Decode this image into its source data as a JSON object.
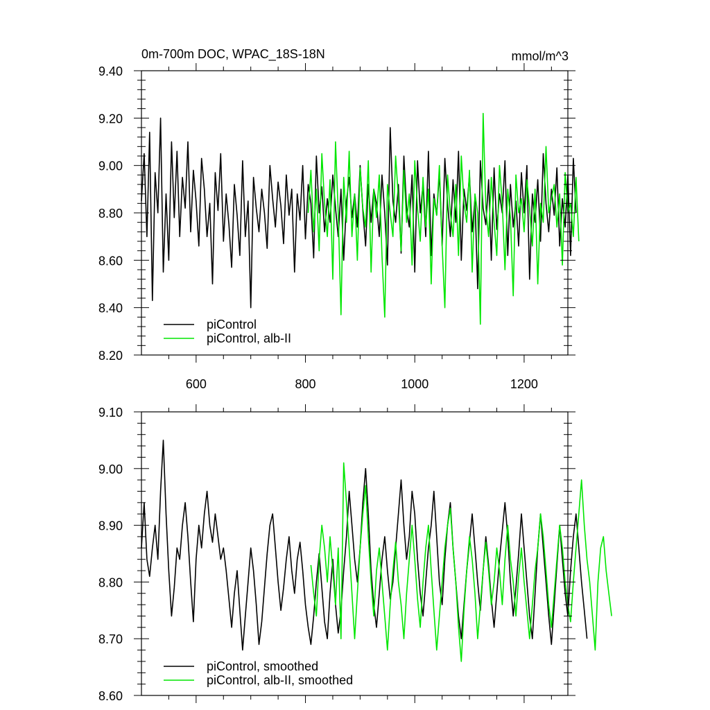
{
  "chart_data": [
    {
      "type": "line",
      "title": "0m-700m DOC, WPAC_18S-18N",
      "units": "mmol/m^3",
      "xlim": [
        500,
        1280
      ],
      "ylim": [
        8.2,
        9.4
      ],
      "xticks": [
        600,
        800,
        1000,
        1200
      ],
      "xtick_labels": [
        "600",
        "800",
        "1000",
        "1200"
      ],
      "yticks": [
        8.2,
        8.4,
        8.6,
        8.8,
        9.0,
        9.2,
        9.4
      ],
      "ytick_labels": [
        "8.20",
        "8.40",
        "8.60",
        "8.80",
        "9.00",
        "9.20",
        "9.40"
      ],
      "grid": false,
      "legend_position": "bottom-left",
      "series": [
        {
          "name": "piControl",
          "color": "#000000",
          "x_start": 500,
          "x_step": 5,
          "values": [
            8.85,
            9.05,
            8.7,
            9.14,
            8.43,
            8.97,
            8.8,
            9.2,
            8.55,
            8.88,
            8.6,
            9.1,
            8.78,
            9.06,
            8.7,
            8.95,
            8.82,
            9.1,
            8.72,
            8.98,
            8.85,
            8.66,
            9.03,
            8.9,
            8.7,
            8.84,
            8.5,
            8.97,
            8.81,
            9.05,
            8.68,
            8.88,
            8.75,
            8.57,
            8.92,
            8.79,
            8.62,
            9.02,
            8.7,
            8.85,
            8.4,
            8.95,
            8.82,
            8.72,
            8.9,
            8.8,
            8.65,
            9.0,
            8.86,
            8.74,
            8.93,
            8.83,
            8.67,
            8.96,
            8.79,
            8.9,
            8.55,
            8.88,
            8.77,
            9.0,
            8.69,
            8.92,
            8.84,
            8.61,
            9.04,
            8.8,
            8.91,
            8.72,
            8.86,
            8.76,
            8.96,
            8.82,
            8.7,
            8.9,
            8.6,
            8.85,
            8.95,
            8.78,
            8.88,
            8.74,
            9.0,
            8.81,
            8.66,
            8.92,
            8.76,
            8.9,
            8.84,
            8.7,
            8.96,
            8.8,
            8.58,
            9.16,
            8.85,
            8.76,
            8.92,
            8.63,
            9.04,
            8.82,
            8.74,
            8.96,
            8.55,
            9.02,
            8.8,
            8.92,
            8.7,
            9.06,
            8.62,
            8.88,
            8.79,
            8.97,
            8.66,
            9.03,
            8.84,
            8.7,
            8.94,
            8.76,
            9.06,
            8.6,
            8.9,
            8.81,
            8.96,
            8.72,
            8.86,
            8.48,
            9.02,
            8.82,
            8.75,
            8.94,
            8.6,
            8.99,
            8.73,
            8.88,
            8.8,
            9.02,
            8.62,
            8.92,
            8.74,
            8.85,
            8.66,
            8.97,
            8.8,
            9.0,
            8.52,
            8.88,
            8.76,
            8.94,
            8.68,
            9.05,
            8.84,
            8.72,
            8.9,
            8.79,
            8.99,
            8.66,
            8.86,
            8.74,
            8.96,
            8.62,
            9.03,
            8.8
          ]
        },
        {
          "name": "piControl, alb-II",
          "color": "#00e600",
          "x_start": 805,
          "x_step": 5,
          "values": [
            8.8,
            8.98,
            8.72,
            8.9,
            8.64,
            9.05,
            8.84,
            8.7,
            8.94,
            8.52,
            9.1,
            8.8,
            8.37,
            8.95,
            8.76,
            9.06,
            8.7,
            8.88,
            8.6,
            8.99,
            8.82,
            8.74,
            9.02,
            8.55,
            8.9,
            8.78,
            8.96,
            8.62,
            8.36,
            8.92,
            8.8,
            8.7,
            9.04,
            8.86,
            8.64,
            8.98,
            8.76,
            8.88,
            8.58,
            9.02,
            8.82,
            8.68,
            8.95,
            8.74,
            8.9,
            8.5,
            8.86,
            8.79,
            9.0,
            8.66,
            8.4,
            8.96,
            8.8,
            8.7,
            8.92,
            8.62,
            9.04,
            8.84,
            8.76,
            8.98,
            8.55,
            8.88,
            8.8,
            8.33,
            9.22,
            8.82,
            8.7,
            8.95,
            8.76,
            8.62,
            9.0,
            8.84,
            8.56,
            8.9,
            8.78,
            8.45,
            8.96,
            8.8,
            8.86,
            8.72,
            8.94,
            8.82,
            8.66,
            8.9,
            8.5,
            8.84,
            8.76,
            9.08,
            8.8,
            8.86,
            8.92,
            8.74,
            8.88,
            8.58,
            8.97,
            8.8,
            8.84,
            8.7,
            8.95,
            8.68
          ]
        }
      ]
    },
    {
      "type": "line",
      "title": "",
      "units": "",
      "xlim": [
        500,
        1280
      ],
      "ylim": [
        8.6,
        9.1
      ],
      "xticks": [
        600,
        800,
        1000,
        1200
      ],
      "xtick_labels": [],
      "yticks": [
        8.6,
        8.7,
        8.8,
        8.9,
        9.0,
        9.1
      ],
      "ytick_labels": [
        "8.60",
        "8.70",
        "8.80",
        "8.90",
        "9.00",
        "9.10"
      ],
      "grid": false,
      "legend_position": "bottom-left",
      "series": [
        {
          "name": "piControl, smoothed",
          "color": "#000000",
          "x_start": 500,
          "x_step": 5,
          "values": [
            8.86,
            8.94,
            8.84,
            8.81,
            8.86,
            8.9,
            8.84,
            8.96,
            9.05,
            8.92,
            8.82,
            8.74,
            8.79,
            8.86,
            8.84,
            8.9,
            8.94,
            8.88,
            8.8,
            8.73,
            8.84,
            8.9,
            8.86,
            8.92,
            8.96,
            8.9,
            8.87,
            8.92,
            8.88,
            8.84,
            8.86,
            8.82,
            8.77,
            8.72,
            8.78,
            8.82,
            8.75,
            8.68,
            8.74,
            8.8,
            8.86,
            8.82,
            8.76,
            8.69,
            8.73,
            8.79,
            8.85,
            8.9,
            8.92,
            8.86,
            8.8,
            8.75,
            8.79,
            8.84,
            8.88,
            8.82,
            8.78,
            8.84,
            8.87,
            8.82,
            8.76,
            8.72,
            8.69,
            8.74,
            8.8,
            8.85,
            8.79,
            8.73,
            8.7,
            8.78,
            8.84,
            8.76,
            8.71,
            8.75,
            8.82,
            8.88,
            8.96,
            8.9,
            8.84,
            8.8,
            8.86,
            8.94,
            9.0,
            8.92,
            8.82,
            8.76,
            8.72,
            8.78,
            8.84,
            8.88,
            8.82,
            8.77,
            8.8,
            8.86,
            8.92,
            8.98,
            8.9,
            8.84,
            8.88,
            8.96,
            8.92,
            8.84,
            8.78,
            8.74,
            8.8,
            8.86,
            8.9,
            8.96,
            8.88,
            8.8,
            8.76,
            8.84,
            8.9,
            8.94,
            8.86,
            8.8,
            8.74,
            8.7,
            8.76,
            8.82,
            8.87,
            8.92,
            8.86,
            8.8,
            8.75,
            8.82,
            8.88,
            8.83,
            8.77,
            8.72,
            8.78,
            8.84,
            8.89,
            8.94,
            8.88,
            8.8,
            8.74,
            8.79,
            8.85,
            8.92,
            8.86,
            8.8,
            8.74,
            8.7,
            8.78,
            8.86,
            8.92,
            8.86,
            8.8,
            8.74,
            8.69,
            8.76,
            8.83,
            8.9,
            8.84,
            8.78,
            8.74,
            8.82,
            8.88,
            8.92,
            8.86,
            8.8,
            8.75,
            8.7
          ]
        },
        {
          "name": "piControl, alb-II, smoothed",
          "color": "#00e600",
          "x_start": 810,
          "x_step": 5,
          "values": [
            8.83,
            8.78,
            8.74,
            8.84,
            8.9,
            8.86,
            8.8,
            8.88,
            8.82,
            8.76,
            8.86,
            8.7,
            9.01,
            8.94,
            8.86,
            8.78,
            8.7,
            8.78,
            8.86,
            8.92,
            8.97,
            8.88,
            8.8,
            8.74,
            8.82,
            8.86,
            8.8,
            8.74,
            8.68,
            8.76,
            8.82,
            8.87,
            8.8,
            8.76,
            8.7,
            8.78,
            8.84,
            8.9,
            8.84,
            8.77,
            8.72,
            8.8,
            8.86,
            8.9,
            8.82,
            8.75,
            8.68,
            8.74,
            8.8,
            8.86,
            8.9,
            8.93,
            8.86,
            8.8,
            8.72,
            8.66,
            8.75,
            8.82,
            8.88,
            8.84,
            8.78,
            8.7,
            8.76,
            8.82,
            8.87,
            8.82,
            8.76,
            8.8,
            8.86,
            8.82,
            8.76,
            8.84,
            8.9,
            8.84,
            8.8,
            8.74,
            8.81,
            8.86,
            8.8,
            8.75,
            8.7,
            8.76,
            8.82,
            8.86,
            8.92,
            8.88,
            8.82,
            8.76,
            8.72,
            8.78,
            8.84,
            8.9,
            8.86,
            8.8,
            8.76,
            8.73,
            8.8,
            8.86,
            8.92,
            8.98,
            8.9,
            8.84,
            8.8,
            8.74,
            8.68,
            8.8,
            8.86,
            8.88,
            8.82,
            8.78,
            8.74
          ]
        }
      ]
    }
  ]
}
